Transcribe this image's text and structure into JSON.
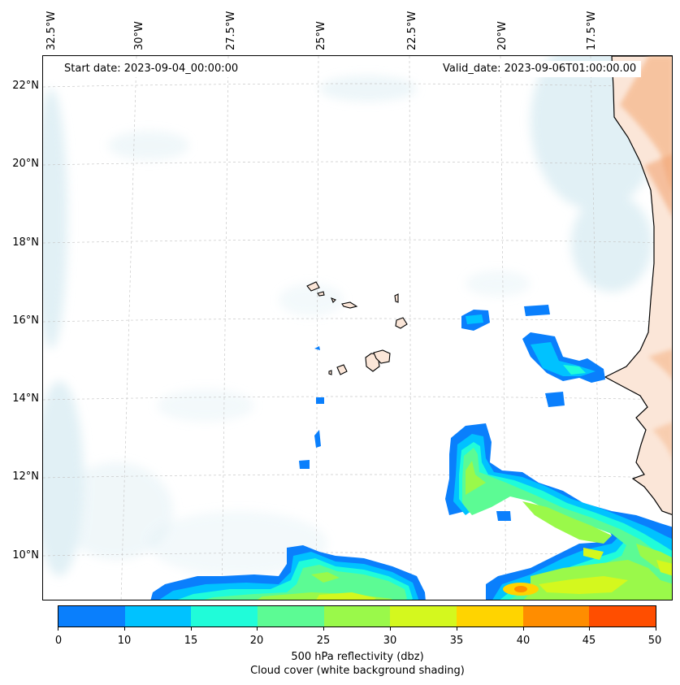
{
  "header": {
    "start_date": "Start date: 2023-09-04_00:00:00",
    "valid_date": "Valid_date: 2023-09-06T01:00:00.00"
  },
  "axes": {
    "longitude_labels": [
      "32.5°W",
      "30°W",
      "27.5°W",
      "25°W",
      "22.5°W",
      "20°W",
      "17.5°W"
    ],
    "latitude_labels": [
      "22°N",
      "20°N",
      "18°N",
      "16°N",
      "14°N",
      "12°N",
      "10°N"
    ]
  },
  "colorbar": {
    "ticks": [
      "0",
      "10",
      "15",
      "20",
      "25",
      "30",
      "35",
      "40",
      "45",
      "50"
    ],
    "colors": [
      "#0a7ffc",
      "#00c2ff",
      "#20fcd9",
      "#5cfb94",
      "#9af94a",
      "#d4f81e",
      "#ffd400",
      "#ff8d00",
      "#ff4e00"
    ],
    "label_line1": "500 hPa reflectivity (dbz)",
    "label_line2": "Cloud cover (white background shading)"
  },
  "map": {
    "land_color": "#f7c9a7",
    "cloud_color": "#d7ebf2",
    "grid_color": "#c8c8c8"
  }
}
